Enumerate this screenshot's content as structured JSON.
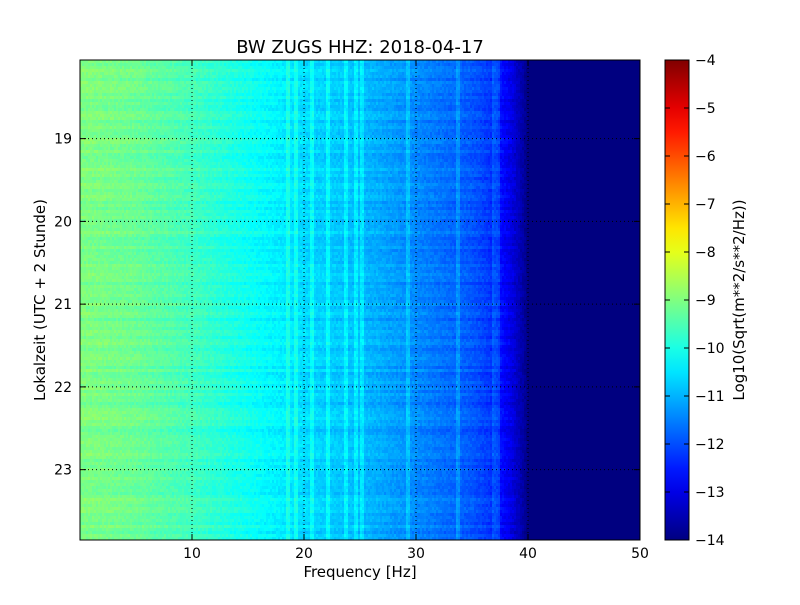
{
  "chart_data": {
    "type": "heatmap",
    "title": "BW ZUGS HHZ: 2018-04-17",
    "xlabel": "Frequency [Hz]",
    "ylabel": "Lokalzeit (UTC + 2 Stunde)",
    "xlim": [
      0,
      50
    ],
    "ylim": [
      18.05,
      23.85
    ],
    "x_ticks": [
      {
        "value": 10,
        "label": "10"
      },
      {
        "value": 20,
        "label": "20"
      },
      {
        "value": 30,
        "label": "30"
      },
      {
        "value": 40,
        "label": "40"
      },
      {
        "value": 50,
        "label": "50"
      }
    ],
    "y_ticks": [
      {
        "value": 19,
        "label": "19"
      },
      {
        "value": 20,
        "label": "20"
      },
      {
        "value": 21,
        "label": "21"
      },
      {
        "value": 22,
        "label": "22"
      },
      {
        "value": 23,
        "label": "23"
      }
    ],
    "y_inverted": true,
    "grid": true,
    "colormap": "jet",
    "colorbar": {
      "label": "Log10(Sqrt(m**2/s**2/Hz))",
      "range": [
        -14,
        -4
      ],
      "ticks": [
        {
          "value": -4,
          "label": "−4"
        },
        {
          "value": -5,
          "label": "−5"
        },
        {
          "value": -6,
          "label": "−6"
        },
        {
          "value": -7,
          "label": "−7"
        },
        {
          "value": -8,
          "label": "−8"
        },
        {
          "value": -9,
          "label": "−9"
        },
        {
          "value": -10,
          "label": "−10"
        },
        {
          "value": -11,
          "label": "−11"
        },
        {
          "value": -12,
          "label": "−12"
        },
        {
          "value": -13,
          "label": "−13"
        },
        {
          "value": -14,
          "label": "−14"
        }
      ]
    },
    "spectrum_profile": {
      "frequency_hz": [
        0,
        5,
        10,
        15,
        20,
        25,
        30,
        33,
        35,
        36.5,
        37.5,
        38.5,
        39.5,
        40,
        50
      ],
      "log10_amplitude": [
        -9.0,
        -9.2,
        -9.6,
        -10.1,
        -10.6,
        -10.9,
        -11.4,
        -11.7,
        -11.9,
        -12.2,
        -12.6,
        -13.0,
        -13.6,
        -14.0,
        -14.0
      ]
    },
    "narrow_lines_hz": [
      18.5,
      19.3,
      20.8,
      22.2,
      23.7,
      24.6,
      25.2,
      29.2,
      33.8,
      36.9,
      37.4
    ]
  }
}
